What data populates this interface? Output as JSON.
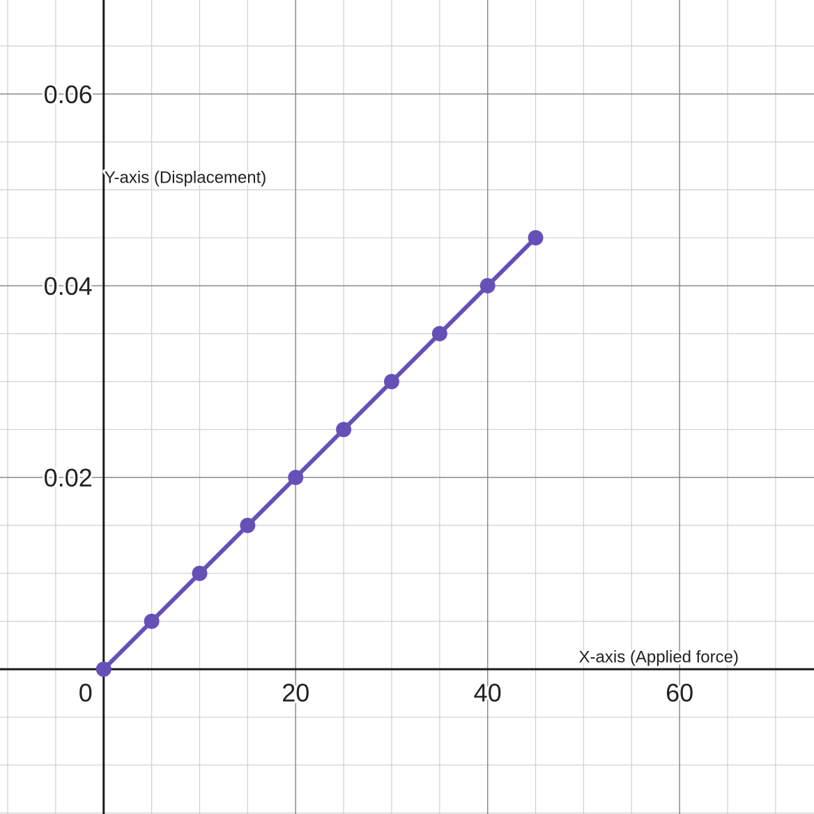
{
  "chart_data": {
    "type": "line",
    "xlabel": "X-axis (Applied force)",
    "ylabel": "Y-axis (Displacement)",
    "xlim": [
      -10.8,
      74
    ],
    "ylim": [
      -0.0151,
      0.0698
    ],
    "x_ticks": [
      0,
      20,
      40,
      60
    ],
    "y_ticks": [
      0.02,
      0.04,
      0.06
    ],
    "x_tick_labels": [
      "0",
      "20",
      "40",
      "60"
    ],
    "y_tick_labels": [
      "0.02",
      "0.04",
      "0.06"
    ],
    "grid": true,
    "series": [
      {
        "x": [
          0,
          5,
          10,
          15,
          20,
          25,
          30,
          35,
          40,
          45
        ],
        "y": [
          0,
          0.005,
          0.01,
          0.015,
          0.02,
          0.025,
          0.03,
          0.035,
          0.04,
          0.045
        ],
        "color": "#6650b8",
        "markers": true
      }
    ]
  }
}
